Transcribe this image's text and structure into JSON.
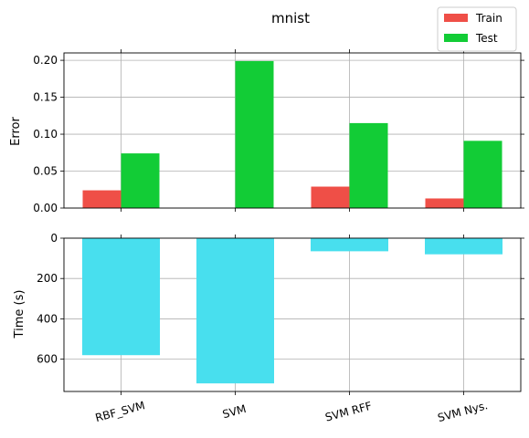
{
  "chart_data": [
    {
      "type": "bar",
      "title": "mnist",
      "ylabel": "Error",
      "categories": [
        "RBF_SVM",
        "SVM",
        "SVM RFF",
        "SVM Nys."
      ],
      "ylim": [
        0,
        0.21
      ],
      "yticks": [
        "0.00",
        "0.05",
        "0.10",
        "0.15",
        "0.20"
      ],
      "ytick_values": [
        0,
        0.05,
        0.1,
        0.15,
        0.2
      ],
      "grid": true,
      "legend_position": "top-right",
      "series": [
        {
          "name": "Train",
          "color": "#ef4f47",
          "values": [
            0.024,
            0.0,
            0.029,
            0.013
          ]
        },
        {
          "name": "Test",
          "color": "#12cc36",
          "values": [
            0.074,
            0.199,
            0.115,
            0.091
          ]
        }
      ]
    },
    {
      "type": "bar",
      "ylabel": "Time (s)",
      "categories": [
        "RBF_SVM",
        "SVM",
        "SVM RFF",
        "SVM Nys."
      ],
      "yaxis_inverted": true,
      "ylim": [
        0,
        760
      ],
      "yticks": [
        "0",
        "200",
        "400",
        "600"
      ],
      "ytick_values": [
        0,
        200,
        400,
        600
      ],
      "grid": true,
      "series": [
        {
          "color": "#48dfee",
          "values": [
            580,
            720,
            65,
            80
          ]
        }
      ]
    }
  ]
}
